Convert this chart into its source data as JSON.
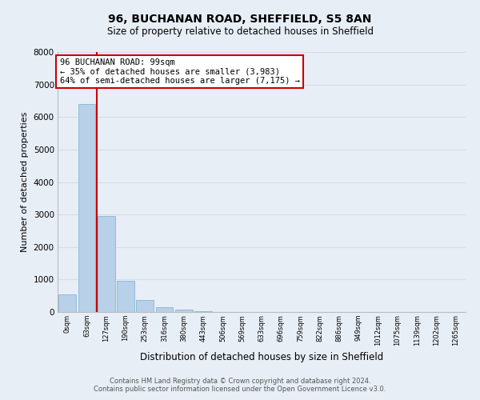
{
  "title": "96, BUCHANAN ROAD, SHEFFIELD, S5 8AN",
  "subtitle": "Size of property relative to detached houses in Sheffield",
  "xlabel": "Distribution of detached houses by size in Sheffield",
  "ylabel": "Number of detached properties",
  "bar_labels": [
    "0sqm",
    "63sqm",
    "127sqm",
    "190sqm",
    "253sqm",
    "316sqm",
    "380sqm",
    "443sqm",
    "506sqm",
    "569sqm",
    "633sqm",
    "696sqm",
    "759sqm",
    "822sqm",
    "886sqm",
    "949sqm",
    "1012sqm",
    "1075sqm",
    "1139sqm",
    "1202sqm",
    "1265sqm"
  ],
  "bar_values": [
    550,
    6400,
    2950,
    970,
    380,
    160,
    65,
    30,
    0,
    0,
    0,
    0,
    0,
    0,
    0,
    0,
    0,
    0,
    0,
    0,
    0
  ],
  "bar_color": "#b8d0e8",
  "bar_edge_color": "#7aaed0",
  "property_line_color": "#cc0000",
  "annotation_text": "96 BUCHANAN ROAD: 99sqm\n← 35% of detached houses are smaller (3,983)\n64% of semi-detached houses are larger (7,175) →",
  "annotation_box_color": "#ffffff",
  "annotation_box_edge": "#cc0000",
  "ylim": [
    0,
    8000
  ],
  "yticks": [
    0,
    1000,
    2000,
    3000,
    4000,
    5000,
    6000,
    7000,
    8000
  ],
  "grid_color": "#d4dce8",
  "background_color": "#e8eef6",
  "footer_line1": "Contains HM Land Registry data © Crown copyright and database right 2024.",
  "footer_line2": "Contains public sector information licensed under the Open Government Licence v3.0."
}
